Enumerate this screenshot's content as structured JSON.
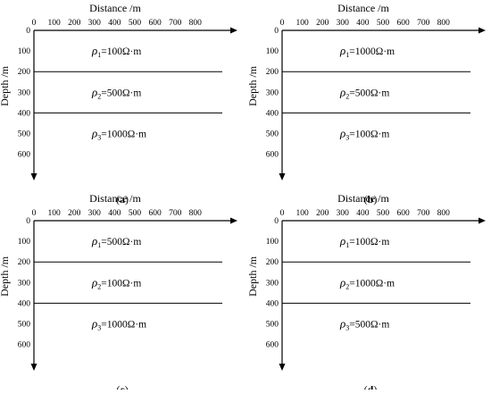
{
  "panels": [
    {
      "caption": "a",
      "x_label": "Distance /m",
      "y_label": "Depth /m",
      "x_ticks": [
        "0",
        "100",
        "200",
        "300",
        "400",
        "500",
        "600",
        "700",
        "800"
      ],
      "y_ticks": [
        "0",
        "100",
        "200",
        "300",
        "400",
        "500",
        "600"
      ],
      "layers": [
        {
          "symbol": "ρ",
          "index": "1",
          "value": "=100Ω·m"
        },
        {
          "symbol": "ρ",
          "index": "2",
          "value": "=500Ω·m"
        },
        {
          "symbol": "ρ",
          "index": "3",
          "value": "=1000Ω·m"
        }
      ],
      "boundary_depths": [
        200,
        400
      ]
    },
    {
      "caption": "b",
      "x_label": "Distance /m",
      "y_label": "Depth /m",
      "x_ticks": [
        "0",
        "100",
        "200",
        "300",
        "400",
        "500",
        "600",
        "700",
        "800"
      ],
      "y_ticks": [
        "0",
        "100",
        "200",
        "300",
        "400",
        "500",
        "600"
      ],
      "layers": [
        {
          "symbol": "ρ",
          "index": "1",
          "value": "=1000Ω·m"
        },
        {
          "symbol": "ρ",
          "index": "2",
          "value": "=500Ω·m"
        },
        {
          "symbol": "ρ",
          "index": "3",
          "value": "=100Ω·m"
        }
      ],
      "boundary_depths": [
        200,
        400
      ]
    },
    {
      "caption": "c",
      "x_label": "Distance /m",
      "y_label": "Depth /m",
      "x_ticks": [
        "0",
        "100",
        "200",
        "300",
        "400",
        "500",
        "600",
        "700",
        "800"
      ],
      "y_ticks": [
        "0",
        "100",
        "200",
        "300",
        "400",
        "500",
        "600"
      ],
      "layers": [
        {
          "symbol": "ρ",
          "index": "1",
          "value": "=500Ω·m"
        },
        {
          "symbol": "ρ",
          "index": "2",
          "value": "=100Ω·m"
        },
        {
          "symbol": "ρ",
          "index": "3",
          "value": "=1000Ω·m"
        }
      ],
      "boundary_depths": [
        200,
        400
      ]
    },
    {
      "caption": "d",
      "x_label": "Distance /m",
      "y_label": "Depth /m",
      "x_ticks": [
        "0",
        "100",
        "200",
        "300",
        "400",
        "500",
        "600",
        "700",
        "800"
      ],
      "y_ticks": [
        "0",
        "100",
        "200",
        "300",
        "400",
        "500",
        "600"
      ],
      "layers": [
        {
          "symbol": "ρ",
          "index": "1",
          "value": "=100Ω·m"
        },
        {
          "symbol": "ρ",
          "index": "2",
          "value": "=1000Ω·m"
        },
        {
          "symbol": "ρ",
          "index": "3",
          "value": "=500Ω·m"
        }
      ],
      "boundary_depths": [
        200,
        400
      ]
    }
  ]
}
